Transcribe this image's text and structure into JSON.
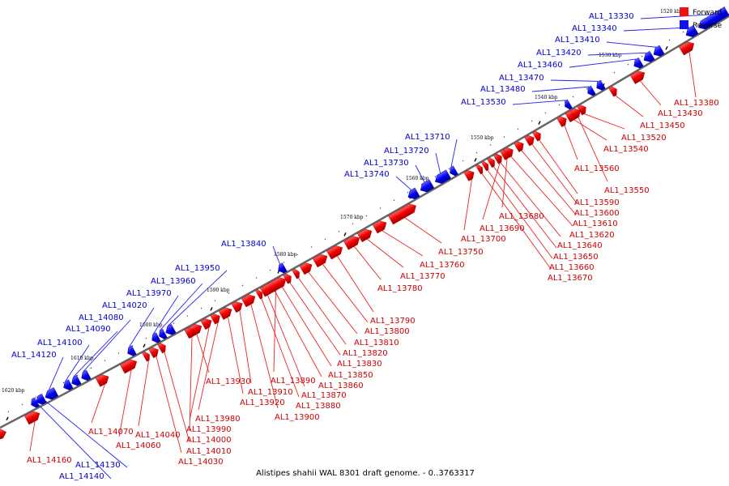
{
  "caption": "Alistipes shahii WAL 8301 draft genome. - 0..3763317",
  "legend": {
    "forward_label": "Forward",
    "reverse_label": "Reverse",
    "forward_color": "#ee1111",
    "reverse_color": "#1111ee"
  },
  "tick_labels": [
    "1520 kbp",
    "1530 kbp",
    "1540 kbp",
    "1550 kbp",
    "1560 kbp",
    "1570 kbp",
    "1580 kbp",
    "1590 kbp",
    "1600 kbp",
    "1610 kbp",
    "1620 kbp"
  ],
  "reverse_genes": [
    "AL1_13330",
    "AL1_13340",
    "AL1_13410",
    "AL1_13420",
    "AL1_13460",
    "AL1_13470",
    "AL1_13480",
    "AL1_13530",
    "AL1_13710",
    "AL1_13720",
    "AL1_13730",
    "AL1_13740",
    "AL1_13840",
    "AL1_13950",
    "AL1_13960",
    "AL1_13970",
    "AL1_14020",
    "AL1_14080",
    "AL1_14090",
    "AL1_14100",
    "AL1_14120",
    "AL1_14130",
    "AL1_14140"
  ],
  "forward_genes": [
    "AL1_13380",
    "AL1_13430",
    "AL1_13450",
    "AL1_13520",
    "AL1_13540",
    "AL1_13550",
    "AL1_13560",
    "AL1_13590",
    "AL1_13600",
    "AL1_13610",
    "AL1_13620",
    "AL1_13640",
    "AL1_13650",
    "AL1_13660",
    "AL1_13670",
    "AL1_13680",
    "AL1_13690",
    "AL1_13700",
    "AL1_13750",
    "AL1_13760",
    "AL1_13770",
    "AL1_13780",
    "AL1_13790",
    "AL1_13800",
    "AL1_13810",
    "AL1_13820",
    "AL1_13830",
    "AL1_13850",
    "AL1_13860",
    "AL1_13870",
    "AL1_13880",
    "AL1_13890",
    "AL1_13900",
    "AL1_13910",
    "AL1_13920",
    "AL1_13930",
    "AL1_13980",
    "AL1_13990",
    "AL1_14000",
    "AL1_14010",
    "AL1_14030",
    "AL1_14040",
    "AL1_14060",
    "AL1_14070",
    "AL1_14160"
  ]
}
